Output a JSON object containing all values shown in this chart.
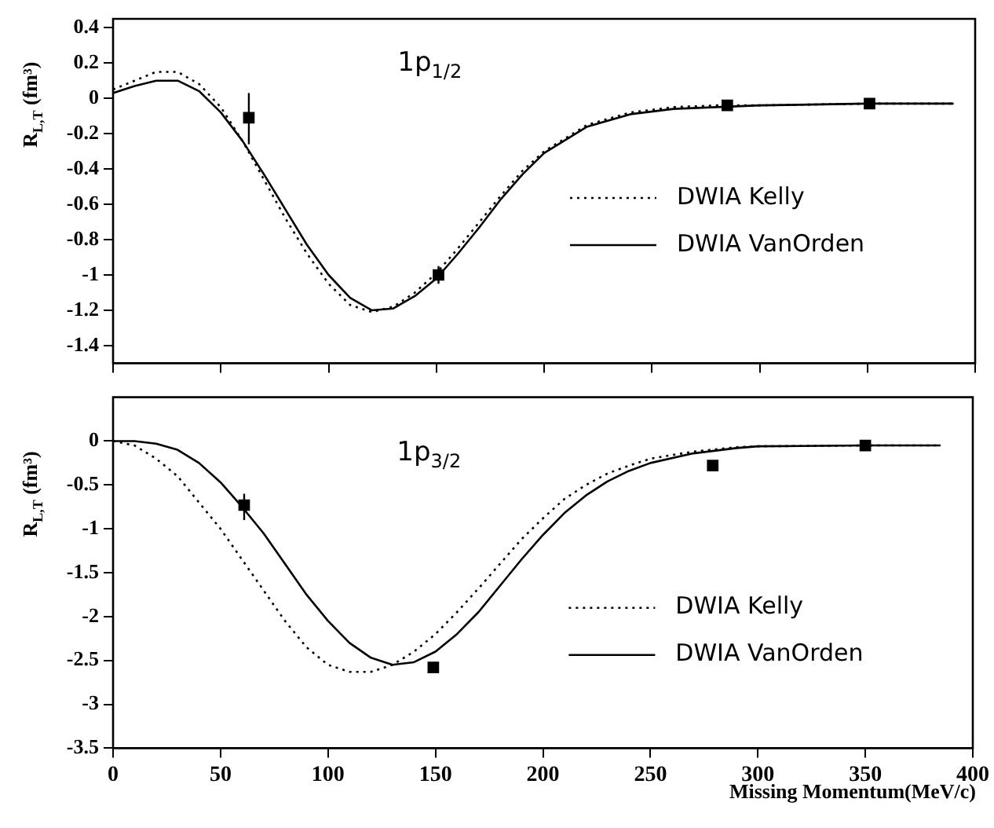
{
  "chart_data": [
    {
      "type": "line",
      "ylabel": "R$_{L,T}$ (fm³)",
      "annotations": [
        "1p$_{1/2}$"
      ],
      "xlim": [
        0,
        400
      ],
      "xticks": [
        0,
        50,
        100,
        150,
        200,
        250,
        300,
        350,
        400
      ],
      "ylim": [
        -1.5,
        0.45
      ],
      "yticks": [
        -1.4,
        -1.2,
        -1,
        -0.8,
        -0.6,
        -0.4,
        -0.2,
        0,
        0.2,
        0.4
      ],
      "tick_labels": "y",
      "legend": "right",
      "grid": false,
      "series": [
        {
          "name": "DWIA Kelly",
          "color": "#000000",
          "line_style": "dotted",
          "marker": "none",
          "x": [
            0,
            10,
            20,
            30,
            40,
            50,
            60,
            70,
            80,
            90,
            100,
            110,
            120,
            130,
            140,
            150,
            160,
            170,
            180,
            190,
            200,
            220,
            240,
            260,
            280,
            300,
            350,
            390
          ],
          "values": [
            0.05,
            0.1,
            0.15,
            0.15,
            0.08,
            -0.05,
            -0.24,
            -0.46,
            -0.68,
            -0.88,
            -1.05,
            -1.17,
            -1.21,
            -1.18,
            -1.1,
            -0.99,
            -0.85,
            -0.7,
            -0.55,
            -0.41,
            -0.3,
            -0.15,
            -0.08,
            -0.05,
            -0.04,
            -0.04,
            -0.03,
            -0.03
          ]
        },
        {
          "name": "DWIA VanOrden",
          "color": "#000000",
          "line_style": "solid",
          "marker": "none",
          "x": [
            0,
            10,
            20,
            30,
            40,
            50,
            60,
            70,
            80,
            90,
            100,
            110,
            120,
            130,
            140,
            150,
            160,
            170,
            180,
            190,
            200,
            220,
            240,
            260,
            280,
            300,
            350,
            390
          ],
          "values": [
            0.03,
            0.07,
            0.1,
            0.1,
            0.04,
            -0.08,
            -0.24,
            -0.43,
            -0.63,
            -0.83,
            -1.0,
            -1.13,
            -1.2,
            -1.19,
            -1.12,
            -1.02,
            -0.88,
            -0.73,
            -0.57,
            -0.43,
            -0.31,
            -0.16,
            -0.09,
            -0.06,
            -0.05,
            -0.04,
            -0.03,
            -0.03
          ]
        },
        {
          "type": "scatter",
          "color": "#000000",
          "marker": "square",
          "x": [
            63,
            151,
            285,
            351
          ],
          "values": [
            -0.11,
            -1.0,
            -0.04,
            -0.03
          ],
          "errors": [
            [
              -0.26,
              0.03
            ],
            [
              -1.05,
              -0.95
            ],
            null,
            null
          ]
        }
      ]
    },
    {
      "type": "line",
      "xlabel": "Missing Momentum(MeV/c)",
      "ylabel": "R$_{L,T}$ (fm³)",
      "annotations": [
        "1p$_{3/2}$"
      ],
      "xlim": [
        0,
        400
      ],
      "xticks": [
        0,
        50,
        100,
        150,
        200,
        250,
        300,
        350,
        400
      ],
      "ylim": [
        -3.5,
        0.5
      ],
      "yticks": [
        -3.5,
        -3,
        -2.5,
        -2,
        -1.5,
        -1,
        -0.5,
        0
      ],
      "legend": "bottom right",
      "grid": false,
      "series": [
        {
          "name": "DWIA Kelly",
          "color": "#000000",
          "line_style": "dotted",
          "marker": "none",
          "x": [
            0,
            10,
            20,
            30,
            40,
            50,
            60,
            70,
            80,
            90,
            100,
            110,
            120,
            130,
            140,
            150,
            160,
            170,
            180,
            190,
            200,
            210,
            220,
            230,
            240,
            250,
            270,
            290,
            300,
            350,
            385
          ],
          "values": [
            0,
            -0.05,
            -0.2,
            -0.4,
            -0.7,
            -1.0,
            -1.35,
            -1.7,
            -2.05,
            -2.35,
            -2.55,
            -2.63,
            -2.63,
            -2.55,
            -2.4,
            -2.2,
            -1.95,
            -1.68,
            -1.4,
            -1.12,
            -0.88,
            -0.66,
            -0.5,
            -0.37,
            -0.28,
            -0.2,
            -0.12,
            -0.07,
            -0.06,
            -0.05,
            -0.05
          ]
        },
        {
          "name": "DWIA VanOrden",
          "color": "#000000",
          "line_style": "solid",
          "marker": "none",
          "x": [
            0,
            10,
            20,
            30,
            40,
            50,
            60,
            70,
            80,
            90,
            100,
            110,
            120,
            130,
            140,
            150,
            160,
            170,
            180,
            190,
            200,
            210,
            220,
            230,
            240,
            250,
            270,
            290,
            300,
            350,
            385
          ],
          "values": [
            0,
            0,
            -0.03,
            -0.1,
            -0.25,
            -0.47,
            -0.75,
            -1.05,
            -1.4,
            -1.75,
            -2.05,
            -2.3,
            -2.47,
            -2.55,
            -2.52,
            -2.4,
            -2.2,
            -1.95,
            -1.65,
            -1.35,
            -1.07,
            -0.82,
            -0.62,
            -0.46,
            -0.34,
            -0.25,
            -0.14,
            -0.08,
            -0.06,
            -0.05,
            -0.05
          ]
        },
        {
          "type": "scatter",
          "color": "#000000",
          "marker": "square",
          "x": [
            61,
            149,
            279,
            350
          ],
          "values": [
            -0.73,
            -2.58,
            -0.28,
            -0.05
          ],
          "errors": [
            [
              -0.9,
              -0.6
            ],
            null,
            null,
            null
          ]
        }
      ]
    }
  ]
}
